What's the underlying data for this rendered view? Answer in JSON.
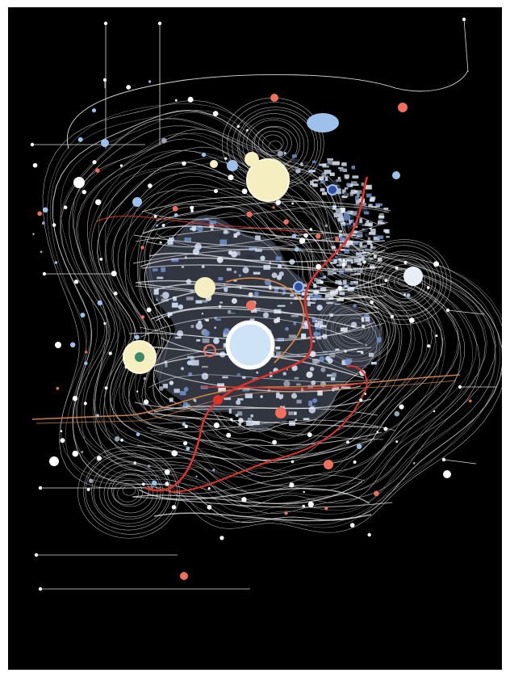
{
  "artwork": {
    "background": "#000000",
    "frame_color": "#ffffff",
    "palette": {
      "line": "#d9d9d9",
      "line_dim": "#8a8a8a",
      "mosaic_light": "#c9d3e6",
      "mosaic_blue": "#6f8fc9",
      "mosaic_grey": "#9aa3b2",
      "mosaic_dark": "#2a2f3a",
      "red": "#e0322a",
      "orange": "#e08a4a",
      "cream": "#f4eec0",
      "pale_blue": "#cfe3f7",
      "light_blue": "#9dc1ea",
      "coral": "#ef6f5a",
      "white": "#ffffff"
    },
    "description_icons": [
      "sun-circle",
      "moon-circle",
      "node-dots"
    ]
  }
}
